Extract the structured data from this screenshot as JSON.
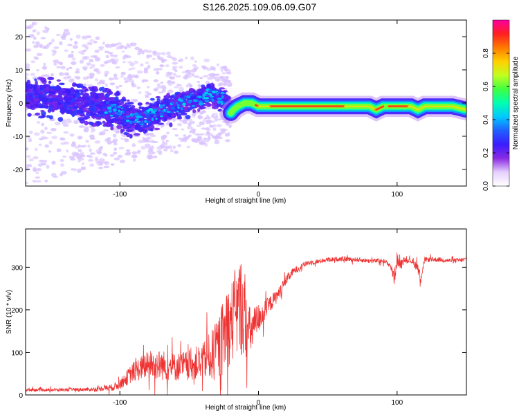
{
  "title": "S126.2025.109.06.09.G07",
  "chart_data": [
    {
      "type": "heatmap",
      "xlabel": "Height of straight line (km)",
      "ylabel": "Frequency (Hz)",
      "xlim": [
        -168,
        150
      ],
      "ylim": [
        -25,
        25
      ],
      "xticks": [
        -100,
        0,
        100
      ],
      "yticks": [
        -20,
        -10,
        0,
        10,
        20
      ],
      "colorbar": {
        "label": "Normalized spectral amplitude",
        "range": [
          0,
          1
        ],
        "ticks": [
          "0.0",
          "0.2",
          "0.4",
          "0.6",
          "0.8"
        ],
        "colormap": [
          "#ffffff",
          "#e6d0ff",
          "#8a2be2",
          "#3b1cff",
          "#1f5fff",
          "#00c8ff",
          "#00ffb0",
          "#40ff40",
          "#c0ff20",
          "#ffd000",
          "#ff7a00",
          "#ff2020",
          "#ff00a0"
        ]
      },
      "ridge": {
        "x": [
          -168,
          -150,
          -130,
          -110,
          -95,
          -85,
          -75,
          -65,
          -55,
          -45,
          -40,
          -35,
          -30,
          -25,
          -22,
          -20,
          -18,
          -15,
          -10,
          -5,
          0,
          5,
          10,
          30,
          50,
          70,
          80,
          85,
          90,
          95,
          100,
          105,
          110,
          115,
          120,
          130,
          140,
          150
        ],
        "y": [
          2,
          1.5,
          0,
          -1,
          -4,
          -5,
          -3,
          -2,
          0,
          1,
          2,
          3,
          1.5,
          1,
          -1,
          -3,
          -2,
          -1,
          0,
          0,
          -1,
          -1,
          -1,
          -1,
          -1,
          -1,
          -1,
          -2,
          -1,
          -1,
          -1,
          -1,
          -1,
          -2,
          -1,
          -1,
          -1,
          -2
        ]
      },
      "scatter_extent": {
        "x_start": -168,
        "x_end": -20,
        "y_half_width": 25
      }
    },
    {
      "type": "line",
      "xlabel": "Height of straight line (km)",
      "ylabel": "SNR (10 * v/v)",
      "xlim": [
        -168,
        150
      ],
      "ylim": [
        0,
        390
      ],
      "xticks": [
        -100,
        0,
        100
      ],
      "yticks": [
        0,
        100,
        200,
        300
      ],
      "series": [
        {
          "color": "#ee3333",
          "x": [
            -168,
            -150,
            -120,
            -105,
            -100,
            -95,
            -90,
            -80,
            -70,
            -60,
            -50,
            -40,
            -30,
            -25,
            -20,
            -15,
            -12,
            -8,
            -5,
            0,
            5,
            10,
            15,
            20,
            25,
            30,
            35,
            40,
            45,
            50,
            60,
            70,
            80,
            90,
            95,
            98,
            100,
            102,
            105,
            110,
            115,
            117,
            120,
            130,
            140,
            150
          ],
          "y": [
            12,
            12,
            13,
            18,
            25,
            40,
            55,
            70,
            70,
            65,
            70,
            80,
            100,
            140,
            170,
            200,
            210,
            150,
            150,
            180,
            200,
            220,
            240,
            270,
            290,
            300,
            310,
            312,
            315,
            318,
            320,
            318,
            315,
            315,
            305,
            275,
            320,
            305,
            318,
            315,
            300,
            275,
            318,
            318,
            315,
            318
          ],
          "noise": [
            6,
            6,
            7,
            14,
            20,
            30,
            40,
            55,
            60,
            55,
            60,
            70,
            120,
            150,
            160,
            190,
            200,
            110,
            90,
            60,
            40,
            30,
            25,
            20,
            15,
            12,
            10,
            10,
            9,
            9,
            9,
            9,
            9,
            9,
            10,
            30,
            30,
            20,
            10,
            9,
            20,
            25,
            10,
            9,
            9,
            9
          ]
        }
      ]
    }
  ]
}
